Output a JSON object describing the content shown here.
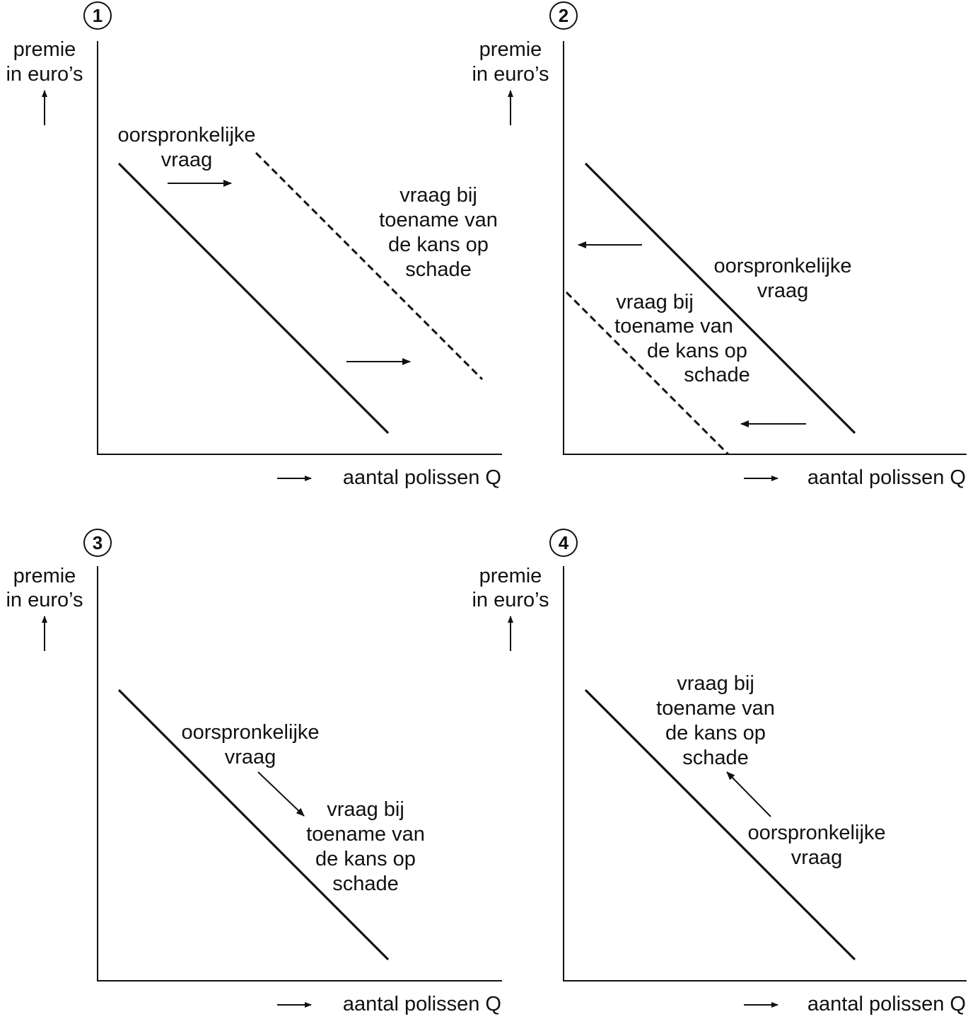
{
  "panels": [
    {
      "number": "1",
      "y_axis_label": [
        "premie",
        "in euro’s"
      ],
      "x_axis_label": "aantal polissen Q",
      "label_original": [
        "oorspronkelijke",
        "vraag"
      ],
      "label_new": [
        "vraag bij",
        "toename van",
        "de kans op",
        "schade"
      ]
    },
    {
      "number": "2",
      "y_axis_label": [
        "premie",
        "in euro’s"
      ],
      "x_axis_label": "aantal polissen Q",
      "label_original": [
        "oorspronkelijke",
        "vraag"
      ],
      "label_new": [
        "vraag bij",
        "toename van",
        "de kans op",
        "schade"
      ]
    },
    {
      "number": "3",
      "y_axis_label": [
        "premie",
        "in euro’s"
      ],
      "x_axis_label": "aantal polissen Q",
      "label_original": [
        "oorspronkelijke",
        "vraag"
      ],
      "label_new": [
        "vraag bij",
        "toename van",
        "de kans op",
        "schade"
      ]
    },
    {
      "number": "4",
      "y_axis_label": [
        "premie",
        "in euro’s"
      ],
      "x_axis_label": "aantal polissen Q",
      "label_original": [
        "oorspronkelijke",
        "vraag"
      ],
      "label_new": [
        "vraag bij",
        "toename van",
        "de kans op",
        "schade"
      ]
    }
  ]
}
